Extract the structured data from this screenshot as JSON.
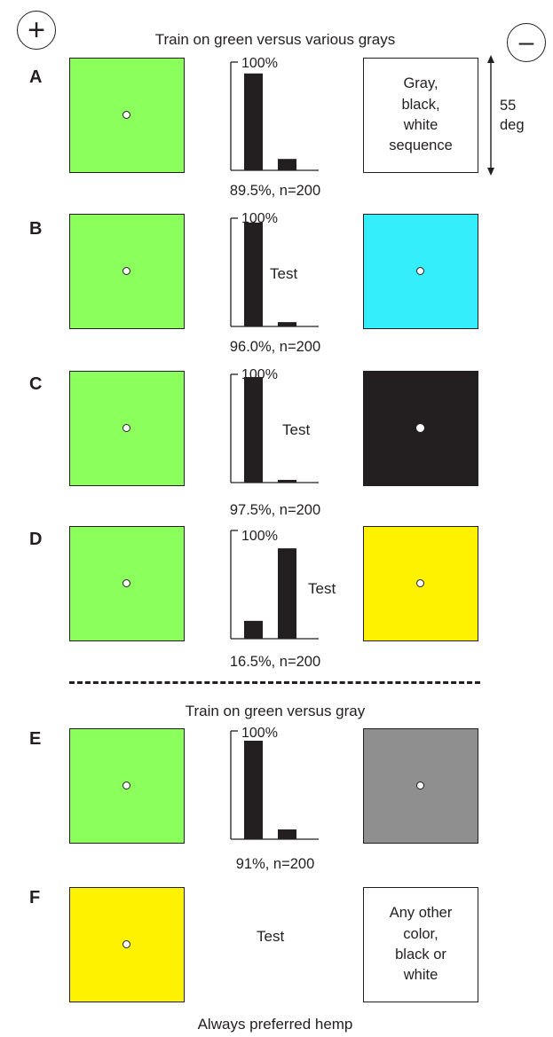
{
  "plus_sign": "+",
  "minus_sign": "–",
  "title_top": "Train on green versus various grays",
  "title_mid": "Train on green versus gray",
  "caption_bottom": "Always preferred hemp",
  "size_label": "55\ndeg",
  "colors": {
    "green": "#8bff5b",
    "cyan": "#35eefc",
    "black": "#231f20",
    "yellow": "#fff200",
    "gray": "#8f8f8f"
  },
  "panels": {
    "A": {
      "label": "A",
      "right_text": "Gray,\nblack,\nwhite\nsequence",
      "pct_label": "100%",
      "stat": "89.5%, n=200"
    },
    "B": {
      "label": "B",
      "pct_label": "100%",
      "test_label": "Test",
      "stat": "96.0%, n=200"
    },
    "C": {
      "label": "C",
      "pct_label": "100%",
      "test_label": "Test",
      "stat": "97.5%, n=200"
    },
    "D": {
      "label": "D",
      "pct_label": "100%",
      "test_label": "Test",
      "stat": "16.5%, n=200"
    },
    "E": {
      "label": "E",
      "pct_label": "100%",
      "stat": "91%, n=200"
    },
    "F": {
      "label": "F",
      "test_label": "Test",
      "right_text": "Any other\ncolor,\nblack or\nwhite"
    }
  },
  "chart_data": [
    {
      "type": "bar",
      "panel": "A",
      "categories": [
        "+",
        "−"
      ],
      "values": [
        89.5,
        10.5
      ],
      "ylim": [
        0,
        100
      ]
    },
    {
      "type": "bar",
      "panel": "B",
      "categories": [
        "+",
        "−"
      ],
      "values": [
        96.0,
        4.0
      ],
      "ylim": [
        0,
        100
      ]
    },
    {
      "type": "bar",
      "panel": "C",
      "categories": [
        "+",
        "−"
      ],
      "values": [
        97.5,
        2.5
      ],
      "ylim": [
        0,
        100
      ]
    },
    {
      "type": "bar",
      "panel": "D",
      "categories": [
        "+",
        "−"
      ],
      "values": [
        16.5,
        83.5
      ],
      "ylim": [
        0,
        100
      ]
    },
    {
      "type": "bar",
      "panel": "E",
      "categories": [
        "+",
        "−"
      ],
      "values": [
        91,
        9
      ],
      "ylim": [
        0,
        100
      ]
    }
  ]
}
